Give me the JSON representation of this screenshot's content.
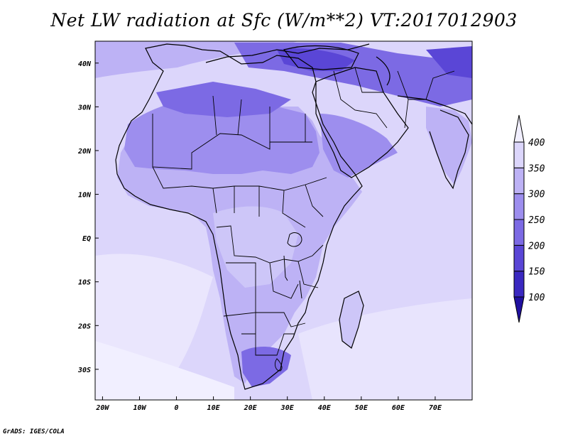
{
  "title": "Net LW radiation at Sfc (W/m**2) VT:2017012903",
  "credit": "GrADS: IGES/COLA",
  "map": {
    "lon_range": [
      -22,
      80
    ],
    "lat_range": [
      -37,
      45
    ],
    "lon_ticks": [
      {
        "value": -20,
        "label": "20W"
      },
      {
        "value": -10,
        "label": "10W"
      },
      {
        "value": 0,
        "label": "0"
      },
      {
        "value": 10,
        "label": "10E"
      },
      {
        "value": 20,
        "label": "20E"
      },
      {
        "value": 30,
        "label": "30E"
      },
      {
        "value": 40,
        "label": "40E"
      },
      {
        "value": 50,
        "label": "50E"
      },
      {
        "value": 60,
        "label": "60E"
      },
      {
        "value": 70,
        "label": "70E"
      }
    ],
    "lat_ticks": [
      {
        "value": 40,
        "label": "40N"
      },
      {
        "value": 30,
        "label": "30N"
      },
      {
        "value": 20,
        "label": "20N"
      },
      {
        "value": 10,
        "label": "10N"
      },
      {
        "value": 0,
        "label": "EQ"
      },
      {
        "value": -10,
        "label": "10S"
      },
      {
        "value": -20,
        "label": "20S"
      },
      {
        "value": -30,
        "label": "30S"
      }
    ]
  },
  "colorbar": {
    "levels": [
      "100",
      "150",
      "200",
      "250",
      "300",
      "350",
      "400"
    ],
    "colors": [
      "#2010a0",
      "#3a28c0",
      "#5a46d6",
      "#7c6ae4",
      "#9d8eee",
      "#bdb2f5",
      "#dcd6fb",
      "#f1efff"
    ]
  }
}
